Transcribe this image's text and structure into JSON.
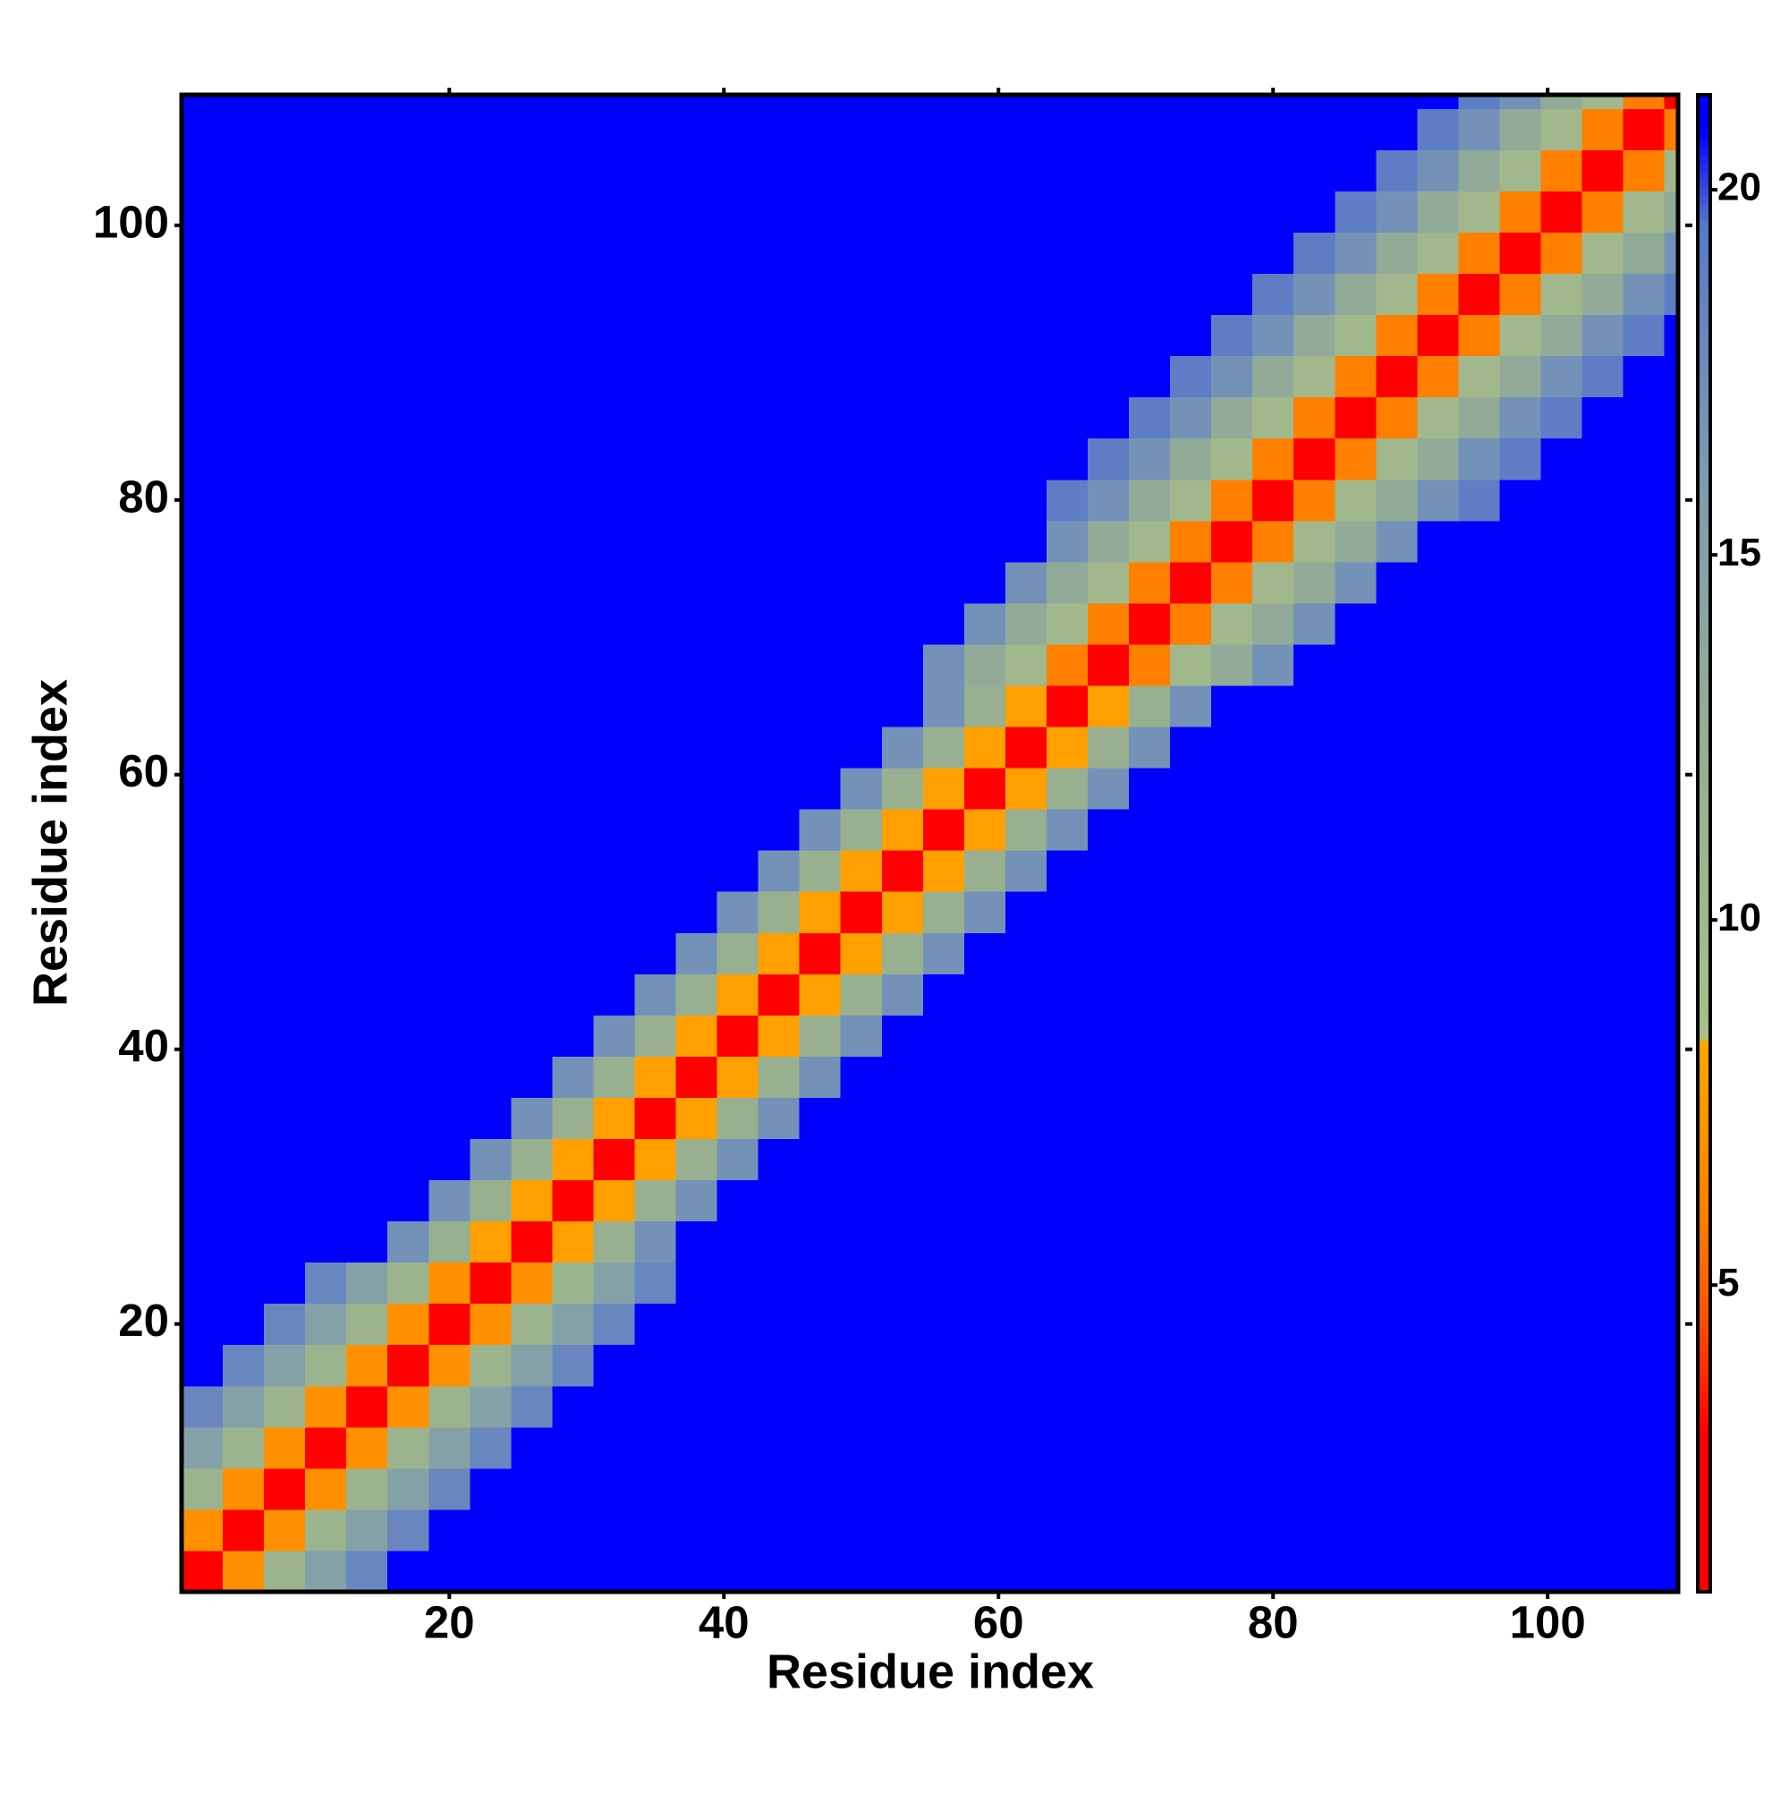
{
  "chart_data": {
    "type": "heatmap",
    "xlabel": "Residue index",
    "ylabel": "Residue index",
    "xlim": [
      0.5,
      109.5
    ],
    "ylim": [
      0.5,
      109.5
    ],
    "xticks": [
      20,
      40,
      60,
      80,
      100
    ],
    "yticks": [
      20,
      40,
      60,
      80,
      100
    ],
    "xbins": [
      0.5,
      3.5,
      6.5,
      9.5,
      12.5,
      15.5,
      18.5,
      21.5,
      24.5,
      27.5,
      30.5,
      33.5,
      36.5,
      39.5,
      42.5,
      45.5,
      48.5,
      51.5,
      54.5,
      57.5,
      60.5,
      63.5,
      66.5,
      69.5,
      72.5,
      75.5,
      78.5,
      81.5,
      84.5,
      87.5,
      90.5,
      93.5,
      96.5,
      99.5,
      102.5,
      105.5,
      108.5,
      109.5
    ],
    "ybins": [
      0.5,
      3.5,
      6.5,
      9.5,
      12.5,
      15.5,
      18.5,
      21.5,
      24.5,
      27.5,
      30.5,
      33.5,
      36.5,
      39.5,
      42.5,
      45.5,
      48.5,
      51.5,
      54.5,
      57.5,
      60.5,
      63.5,
      66.5,
      69.5,
      72.5,
      75.5,
      78.5,
      81.5,
      84.5,
      87.5,
      90.5,
      93.5,
      96.5,
      99.5,
      102.5,
      105.5,
      108.5,
      109.5
    ],
    "colorbar": {
      "lim": [
        0.8,
        21.3
      ],
      "ticks": [
        5,
        10,
        15,
        20
      ]
    },
    "colorscale": [
      [
        0.8,
        "#ff0000"
      ],
      [
        3,
        "#ff0000"
      ],
      [
        4.5,
        "#ff5000"
      ],
      [
        6,
        "#ff8000"
      ],
      [
        8.3,
        "#ffa500"
      ],
      [
        8.4,
        "#a8bf88"
      ],
      [
        12,
        "#98b090"
      ],
      [
        16,
        "#7f9cb0"
      ],
      [
        19.5,
        "#5878c8"
      ],
      [
        20.8,
        "#0000ff"
      ],
      [
        21.3,
        "#0000ff"
      ]
    ],
    "z": [
      [
        2,
        7,
        11,
        15,
        18,
        21,
        21,
        21,
        21,
        21,
        21,
        21,
        21,
        21,
        21,
        21,
        21,
        21,
        21,
        21,
        21,
        21,
        21,
        21,
        21,
        21,
        21,
        21,
        21,
        21,
        21,
        21,
        21,
        21,
        21,
        21,
        21
      ],
      [
        7,
        2,
        7,
        11,
        15,
        18,
        21,
        21,
        21,
        21,
        21,
        21,
        21,
        21,
        21,
        21,
        21,
        21,
        21,
        21,
        21,
        21,
        21,
        21,
        21,
        21,
        21,
        21,
        21,
        21,
        21,
        21,
        21,
        21,
        21,
        21,
        21
      ],
      [
        11,
        7,
        2,
        7,
        11,
        15,
        18,
        21,
        21,
        21,
        21,
        21,
        21,
        21,
        21,
        21,
        21,
        21,
        21,
        21,
        21,
        21,
        21,
        21,
        21,
        21,
        21,
        21,
        21,
        21,
        21,
        21,
        21,
        21,
        21,
        21,
        21
      ],
      [
        15,
        11,
        7,
        2,
        7,
        11,
        15,
        18,
        21,
        21,
        21,
        21,
        21,
        21,
        21,
        21,
        21,
        21,
        21,
        21,
        21,
        21,
        21,
        21,
        21,
        21,
        21,
        21,
        21,
        21,
        21,
        21,
        21,
        21,
        21,
        21,
        21
      ],
      [
        18,
        15,
        11,
        7,
        2,
        7,
        11,
        15,
        18,
        21,
        21,
        21,
        21,
        21,
        21,
        21,
        21,
        21,
        21,
        21,
        21,
        21,
        21,
        21,
        21,
        21,
        21,
        21,
        21,
        21,
        21,
        21,
        21,
        21,
        21,
        21,
        21
      ],
      [
        21,
        18,
        15,
        11,
        7,
        2,
        7,
        11,
        15,
        18,
        21,
        21,
        21,
        21,
        21,
        21,
        21,
        21,
        21,
        21,
        21,
        21,
        21,
        21,
        21,
        21,
        21,
        21,
        21,
        21,
        21,
        21,
        21,
        21,
        21,
        21,
        21
      ],
      [
        21,
        21,
        18,
        15,
        11,
        7,
        2,
        7,
        11,
        15,
        18,
        21,
        21,
        21,
        21,
        21,
        21,
        21,
        21,
        21,
        21,
        21,
        21,
        21,
        21,
        21,
        21,
        21,
        21,
        21,
        21,
        21,
        21,
        21,
        21,
        21,
        21
      ],
      [
        21,
        21,
        21,
        18,
        15,
        11,
        7,
        2,
        7,
        11,
        15,
        18,
        21,
        21,
        21,
        21,
        21,
        21,
        21,
        21,
        21,
        21,
        21,
        21,
        21,
        21,
        21,
        21,
        21,
        21,
        21,
        21,
        21,
        21,
        21,
        21,
        21
      ],
      [
        21,
        21,
        21,
        21,
        21,
        17,
        12,
        8,
        2,
        8,
        12,
        17,
        21,
        21,
        21,
        21,
        21,
        21,
        21,
        21,
        21,
        21,
        21,
        21,
        21,
        21,
        21,
        21,
        21,
        21,
        21,
        21,
        21,
        21,
        21,
        21,
        21
      ],
      [
        21,
        21,
        21,
        21,
        21,
        21,
        17,
        12,
        8,
        2,
        8,
        12,
        17,
        21,
        21,
        21,
        21,
        21,
        21,
        21,
        21,
        21,
        21,
        21,
        21,
        21,
        21,
        21,
        21,
        21,
        21,
        21,
        21,
        21,
        21,
        21,
        21
      ],
      [
        21,
        21,
        21,
        21,
        21,
        21,
        21,
        17,
        12,
        8,
        2,
        8,
        12,
        17,
        21,
        21,
        21,
        21,
        21,
        21,
        21,
        21,
        21,
        21,
        21,
        21,
        21,
        21,
        21,
        21,
        21,
        21,
        21,
        21,
        21,
        21,
        21
      ],
      [
        21,
        21,
        21,
        21,
        21,
        21,
        21,
        21,
        17,
        12,
        8,
        2,
        8,
        12,
        17,
        21,
        21,
        21,
        21,
        21,
        21,
        21,
        21,
        21,
        21,
        21,
        21,
        21,
        21,
        21,
        21,
        21,
        21,
        21,
        21,
        21,
        21
      ],
      [
        21,
        21,
        21,
        21,
        21,
        21,
        21,
        21,
        21,
        17,
        12,
        8,
        2,
        8,
        12,
        17,
        21,
        21,
        21,
        21,
        21,
        21,
        21,
        21,
        21,
        21,
        21,
        21,
        21,
        21,
        21,
        21,
        21,
        21,
        21,
        21,
        21
      ],
      [
        21,
        21,
        21,
        21,
        21,
        21,
        21,
        21,
        21,
        21,
        17,
        12,
        8,
        2,
        8,
        12,
        17,
        21,
        21,
        21,
        21,
        21,
        21,
        21,
        21,
        21,
        21,
        21,
        21,
        21,
        21,
        21,
        21,
        21,
        21,
        21,
        21
      ],
      [
        21,
        21,
        21,
        21,
        21,
        21,
        21,
        21,
        21,
        21,
        21,
        17,
        12,
        8,
        2,
        8,
        12,
        17,
        21,
        21,
        21,
        21,
        21,
        21,
        21,
        21,
        21,
        21,
        21,
        21,
        21,
        21,
        21,
        21,
        21,
        21,
        21
      ],
      [
        21,
        21,
        21,
        21,
        21,
        21,
        21,
        21,
        21,
        21,
        21,
        21,
        17,
        12,
        8,
        2,
        8,
        12,
        17,
        21,
        21,
        21,
        21,
        21,
        21,
        21,
        21,
        21,
        21,
        21,
        21,
        21,
        21,
        21,
        21,
        21,
        21
      ],
      [
        21,
        21,
        21,
        21,
        21,
        21,
        21,
        21,
        21,
        21,
        21,
        21,
        21,
        17,
        12,
        8,
        2,
        8,
        12,
        17,
        21,
        21,
        21,
        21,
        21,
        21,
        21,
        21,
        21,
        21,
        21,
        21,
        21,
        21,
        21,
        21,
        21
      ],
      [
        21,
        21,
        21,
        21,
        21,
        21,
        21,
        21,
        21,
        21,
        21,
        21,
        21,
        21,
        17,
        12,
        8,
        2,
        8,
        12,
        17,
        21,
        21,
        21,
        21,
        21,
        21,
        21,
        21,
        21,
        21,
        21,
        21,
        21,
        21,
        21,
        21
      ],
      [
        21,
        21,
        21,
        21,
        21,
        21,
        21,
        21,
        21,
        21,
        21,
        21,
        21,
        21,
        21,
        17,
        12,
        8,
        2,
        8,
        12,
        17,
        21,
        21,
        21,
        21,
        21,
        21,
        21,
        21,
        21,
        21,
        21,
        21,
        21,
        21,
        21
      ],
      [
        21,
        21,
        21,
        21,
        21,
        21,
        21,
        21,
        21,
        21,
        21,
        21,
        21,
        21,
        21,
        21,
        17,
        12,
        8,
        2,
        8,
        12,
        17,
        21,
        21,
        21,
        21,
        21,
        21,
        21,
        21,
        21,
        21,
        21,
        21,
        21,
        21
      ],
      [
        21,
        21,
        21,
        21,
        21,
        21,
        21,
        21,
        21,
        21,
        21,
        21,
        21,
        21,
        21,
        21,
        21,
        17,
        12,
        8,
        2,
        8,
        12,
        17,
        21,
        21,
        21,
        21,
        21,
        21,
        21,
        21,
        21,
        21,
        21,
        21,
        21
      ],
      [
        21,
        21,
        21,
        21,
        21,
        21,
        21,
        21,
        21,
        21,
        21,
        21,
        21,
        21,
        21,
        21,
        21,
        21,
        17,
        12,
        8,
        2,
        8,
        12,
        17,
        21,
        21,
        21,
        21,
        21,
        21,
        21,
        21,
        21,
        21,
        21,
        21
      ],
      [
        21,
        21,
        21,
        21,
        21,
        21,
        21,
        21,
        21,
        21,
        21,
        21,
        21,
        21,
        21,
        21,
        21,
        21,
        17,
        13,
        10,
        6,
        2,
        6,
        10,
        13,
        17,
        21,
        21,
        21,
        21,
        21,
        21,
        21,
        21,
        21,
        21
      ],
      [
        21,
        21,
        21,
        21,
        21,
        21,
        21,
        21,
        21,
        21,
        21,
        21,
        21,
        21,
        21,
        21,
        21,
        21,
        21,
        17,
        13,
        10,
        6,
        2,
        6,
        10,
        13,
        17,
        21,
        21,
        21,
        21,
        21,
        21,
        21,
        21,
        21
      ],
      [
        21,
        21,
        21,
        21,
        21,
        21,
        21,
        21,
        21,
        21,
        21,
        21,
        21,
        21,
        21,
        21,
        21,
        21,
        21,
        21,
        17,
        13,
        10,
        6,
        2,
        6,
        10,
        13,
        17,
        21,
        21,
        21,
        21,
        21,
        21,
        21,
        21
      ],
      [
        21,
        21,
        21,
        21,
        21,
        21,
        21,
        21,
        21,
        21,
        21,
        21,
        21,
        21,
        21,
        21,
        21,
        21,
        21,
        21,
        21,
        17,
        13,
        10,
        6,
        2,
        6,
        10,
        13,
        17,
        21,
        21,
        21,
        21,
        21,
        21,
        21
      ],
      [
        21,
        21,
        21,
        21,
        21,
        21,
        21,
        21,
        21,
        21,
        21,
        21,
        21,
        21,
        21,
        21,
        21,
        21,
        21,
        21,
        21,
        19,
        17,
        13,
        10,
        6,
        2,
        6,
        10,
        13,
        17,
        19,
        21,
        21,
        21,
        21,
        21
      ],
      [
        21,
        21,
        21,
        21,
        21,
        21,
        21,
        21,
        21,
        21,
        21,
        21,
        21,
        21,
        21,
        21,
        21,
        21,
        21,
        21,
        21,
        21,
        19,
        17,
        13,
        10,
        6,
        2,
        6,
        10,
        13,
        17,
        19,
        21,
        21,
        21,
        21
      ],
      [
        21,
        21,
        21,
        21,
        21,
        21,
        21,
        21,
        21,
        21,
        21,
        21,
        21,
        21,
        21,
        21,
        21,
        21,
        21,
        21,
        21,
        21,
        21,
        19,
        17,
        13,
        10,
        6,
        2,
        6,
        10,
        13,
        17,
        19,
        21,
        21,
        21
      ],
      [
        21,
        21,
        21,
        21,
        21,
        21,
        21,
        21,
        21,
        21,
        21,
        21,
        21,
        21,
        21,
        21,
        21,
        21,
        21,
        21,
        21,
        21,
        21,
        21,
        19,
        17,
        13,
        10,
        6,
        2,
        6,
        10,
        13,
        17,
        19,
        21,
        21
      ],
      [
        21,
        21,
        21,
        21,
        21,
        21,
        21,
        21,
        21,
        21,
        21,
        21,
        21,
        21,
        21,
        21,
        21,
        21,
        21,
        21,
        21,
        21,
        21,
        21,
        21,
        19,
        17,
        13,
        10,
        6,
        2,
        6,
        10,
        13,
        17,
        19,
        21
      ],
      [
        21,
        21,
        21,
        21,
        21,
        21,
        21,
        21,
        21,
        21,
        21,
        21,
        21,
        21,
        21,
        21,
        21,
        21,
        21,
        21,
        21,
        21,
        21,
        21,
        21,
        21,
        19,
        17,
        13,
        10,
        6,
        2,
        6,
        10,
        13,
        17,
        19
      ],
      [
        21,
        21,
        21,
        21,
        21,
        21,
        21,
        21,
        21,
        21,
        21,
        21,
        21,
        21,
        21,
        21,
        21,
        21,
        21,
        21,
        21,
        21,
        21,
        21,
        21,
        21,
        21,
        19,
        17,
        13,
        10,
        6,
        2,
        6,
        10,
        13,
        17
      ],
      [
        21,
        21,
        21,
        21,
        21,
        21,
        21,
        21,
        21,
        21,
        21,
        21,
        21,
        21,
        21,
        21,
        21,
        21,
        21,
        21,
        21,
        21,
        21,
        21,
        21,
        21,
        21,
        21,
        19,
        17,
        13,
        10,
        6,
        2,
        6,
        10,
        13
      ],
      [
        21,
        21,
        21,
        21,
        21,
        21,
        21,
        21,
        21,
        21,
        21,
        21,
        21,
        21,
        21,
        21,
        21,
        21,
        21,
        21,
        21,
        21,
        21,
        21,
        21,
        21,
        21,
        21,
        21,
        19,
        17,
        13,
        10,
        6,
        2,
        6,
        10
      ],
      [
        21,
        21,
        21,
        21,
        21,
        21,
        21,
        21,
        21,
        21,
        21,
        21,
        21,
        21,
        21,
        21,
        21,
        21,
        21,
        21,
        21,
        21,
        21,
        21,
        21,
        21,
        21,
        21,
        21,
        21,
        19,
        17,
        13,
        10,
        6,
        2,
        6
      ],
      [
        21,
        21,
        21,
        21,
        21,
        21,
        21,
        21,
        21,
        21,
        21,
        21,
        21,
        21,
        21,
        21,
        21,
        21,
        21,
        21,
        21,
        21,
        21,
        21,
        21,
        21,
        21,
        21,
        21,
        21,
        21,
        19,
        17,
        13,
        10,
        6,
        2
      ]
    ]
  }
}
